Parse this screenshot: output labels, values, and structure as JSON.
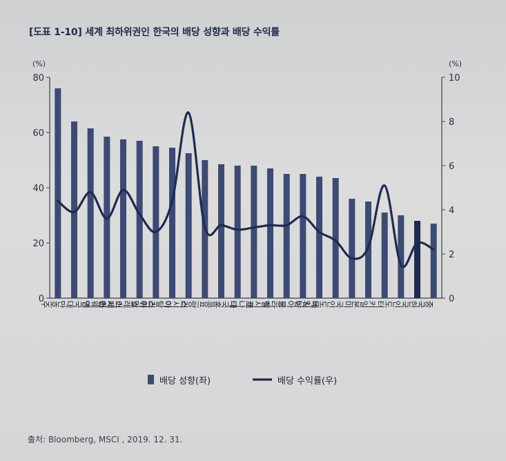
{
  "title": "[도표 1-10] 세계 최하위권인 한국의 배당 성향과 배당 수익률",
  "source": "출처: Bloomberg, MSCI , 2019. 12. 31.",
  "colors": {
    "bar": "#3d4a73",
    "bar_highlight": "#1e2a52",
    "line": "#1f2a4f",
    "axis": "#3a3f4a"
  },
  "chart_data": {
    "type": "bar",
    "categories": [
      "호주",
      "대만",
      "영국",
      "스웨덴",
      "스페인",
      "말레이시아",
      "스위스",
      "이탈리아",
      "러시아",
      "프랑스",
      "홍콩",
      "태국",
      "캐나다",
      "멕시코",
      "브라질",
      "남아공",
      "독일",
      "인도네시아",
      "미국",
      "일본",
      "터키",
      "인도",
      "한국",
      "중국"
    ],
    "highlight_category": "한국",
    "series": [
      {
        "name": "배당 성향(좌)",
        "type": "bar",
        "axis": "left",
        "values": [
          76,
          64,
          61.5,
          58.5,
          57.5,
          57,
          55,
          54.5,
          52.5,
          50,
          48.5,
          48,
          48,
          47,
          45,
          45,
          44,
          43.5,
          36,
          35,
          31,
          30,
          28,
          27
        ]
      },
      {
        "name": "배당 수익률(우)",
        "type": "line",
        "axis": "right",
        "values": [
          4.4,
          3.9,
          4.8,
          3.6,
          4.9,
          3.8,
          3.0,
          4.4,
          8.4,
          3.2,
          3.3,
          3.1,
          3.2,
          3.3,
          3.3,
          3.7,
          3.0,
          2.6,
          1.8,
          2.3,
          5.1,
          1.5,
          2.5,
          2.2
        ]
      }
    ],
    "y_left": {
      "label": "(%)",
      "ylim": [
        0,
        80
      ],
      "ticks": [
        0,
        20,
        40,
        60,
        80
      ]
    },
    "y_right": {
      "label": "(%)",
      "ylim": [
        0,
        10
      ],
      "ticks": [
        0,
        2,
        4,
        6,
        8,
        10
      ]
    },
    "legend": [
      "배당 성향(좌)",
      "배당 수익률(우)"
    ],
    "legend_position": "bottom",
    "grid": false
  }
}
